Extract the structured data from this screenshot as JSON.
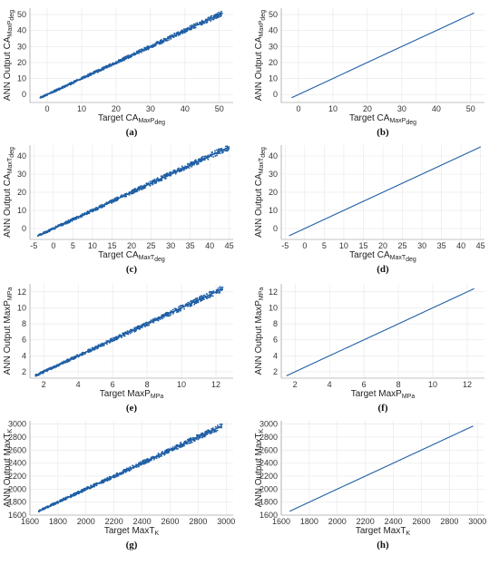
{
  "chart_data": [
    {
      "id": "a",
      "caption": "(a)",
      "type": "scatter",
      "xlabel": "Target CA_MaxP_deg",
      "ylabel": "ANN Output CA_MaxP_deg",
      "xticks": [
        0,
        10,
        20,
        30,
        40,
        50
      ],
      "yticks": [
        0,
        10,
        20,
        30,
        40,
        50
      ],
      "xlim": [
        -5,
        54
      ],
      "ylim": [
        -5,
        54
      ],
      "series": [
        {
          "x": [
            -2,
            0,
            10,
            20,
            30,
            40,
            51
          ],
          "y": [
            -2,
            0,
            10,
            20,
            30,
            40,
            51
          ],
          "spread": 1.2
        }
      ],
      "color": "#1f5fa5"
    },
    {
      "id": "b",
      "caption": "(b)",
      "type": "scatter",
      "xlabel": "Target CA_MaxP_deg",
      "ylabel": "ANN Output CA_MaxP_deg",
      "xticks": [
        0,
        10,
        20,
        30,
        40,
        50
      ],
      "yticks": [
        0,
        10,
        20,
        30,
        40,
        50
      ],
      "xlim": [
        -5,
        54
      ],
      "ylim": [
        -5,
        54
      ],
      "series": [
        {
          "x": [
            -2,
            0,
            10,
            20,
            30,
            40,
            51
          ],
          "y": [
            -2,
            0,
            10,
            20,
            30,
            40,
            51
          ],
          "spread": 0
        }
      ],
      "color": "#1f5fa5"
    },
    {
      "id": "c",
      "caption": "(c)",
      "type": "scatter",
      "xlabel": "Target CA_MaxT_deg",
      "ylabel": "ANN Output CA_MaxT_deg",
      "xticks": [
        -5,
        0,
        5,
        10,
        15,
        20,
        25,
        30,
        35,
        40,
        45
      ],
      "yticks": [
        0,
        10,
        20,
        30,
        40
      ],
      "xlim": [
        -6,
        46
      ],
      "ylim": [
        -6,
        46
      ],
      "series": [
        {
          "x": [
            -4,
            0,
            10,
            20,
            30,
            40,
            45
          ],
          "y": [
            -4,
            0,
            10,
            20,
            30,
            40,
            45
          ],
          "spread": 1.3
        }
      ],
      "color": "#1f5fa5"
    },
    {
      "id": "d",
      "caption": "(d)",
      "type": "scatter",
      "xlabel": "Target CA_MaxT_deg",
      "ylabel": "ANN Output CA_MaxT_deg",
      "xticks": [
        -5,
        0,
        5,
        10,
        15,
        20,
        25,
        30,
        35,
        40,
        45
      ],
      "yticks": [
        0,
        10,
        20,
        30,
        40
      ],
      "xlim": [
        -6,
        46
      ],
      "ylim": [
        -6,
        46
      ],
      "series": [
        {
          "x": [
            -4,
            0,
            10,
            20,
            30,
            40,
            45
          ],
          "y": [
            -4,
            0,
            10,
            20,
            30,
            40,
            45
          ],
          "spread": 0
        }
      ],
      "color": "#1f5fa5"
    },
    {
      "id": "e",
      "caption": "(e)",
      "type": "scatter",
      "xlabel": "Target MaxP_MPa",
      "ylabel": "ANN Output MaxP_MPa",
      "xticks": [
        2,
        4,
        6,
        8,
        10,
        12
      ],
      "yticks": [
        2,
        4,
        6,
        8,
        10,
        12
      ],
      "xlim": [
        1.2,
        13
      ],
      "ylim": [
        1.2,
        13
      ],
      "series": [
        {
          "x": [
            1.5,
            4,
            6,
            8,
            10,
            12.4
          ],
          "y": [
            1.5,
            4,
            6,
            8,
            10,
            12.4
          ],
          "spread": 0.3
        }
      ],
      "color": "#1f5fa5"
    },
    {
      "id": "f",
      "caption": "(f)",
      "type": "scatter",
      "xlabel": "Target MaxP_MPa",
      "ylabel": "ANN Output MaxP_MPa",
      "xticks": [
        2,
        4,
        6,
        8,
        10,
        12
      ],
      "yticks": [
        2,
        4,
        6,
        8,
        10,
        12
      ],
      "xlim": [
        1.2,
        13
      ],
      "ylim": [
        1.2,
        13
      ],
      "series": [
        {
          "x": [
            1.5,
            4,
            6,
            8,
            10,
            12.4
          ],
          "y": [
            1.5,
            4,
            6,
            8,
            10,
            12.4
          ],
          "spread": 0
        }
      ],
      "color": "#1f5fa5"
    },
    {
      "id": "g",
      "caption": "(g)",
      "type": "scatter",
      "xlabel": "Target MaxT_K",
      "ylabel": "ANN Output MaxT_K",
      "xticks": [
        1600,
        1800,
        2000,
        2200,
        2400,
        2600,
        2800,
        3000
      ],
      "yticks": [
        1600,
        1800,
        2000,
        2200,
        2400,
        2600,
        2800,
        3000
      ],
      "xlim": [
        1600,
        3050
      ],
      "ylim": [
        1600,
        3050
      ],
      "series": [
        {
          "x": [
            1660,
            2000,
            2400,
            2800,
            2970
          ],
          "y": [
            1660,
            2000,
            2400,
            2800,
            2970
          ],
          "spread": 35
        }
      ],
      "color": "#1f5fa5"
    },
    {
      "id": "h",
      "caption": "(h)",
      "type": "scatter",
      "xlabel": "Target MaxT_K",
      "ylabel": "ANN Output MaxT_K",
      "xticks": [
        1600,
        1800,
        2000,
        2200,
        2400,
        2600,
        2800,
        3000
      ],
      "yticks": [
        1600,
        1800,
        2000,
        2200,
        2400,
        2600,
        2800,
        3000
      ],
      "xlim": [
        1600,
        3050
      ],
      "ylim": [
        1600,
        3050
      ],
      "series": [
        {
          "x": [
            1660,
            2000,
            2400,
            2800,
            2970
          ],
          "y": [
            1660,
            2000,
            2400,
            2800,
            2970
          ],
          "spread": 0
        }
      ],
      "color": "#1f5fa5"
    }
  ]
}
